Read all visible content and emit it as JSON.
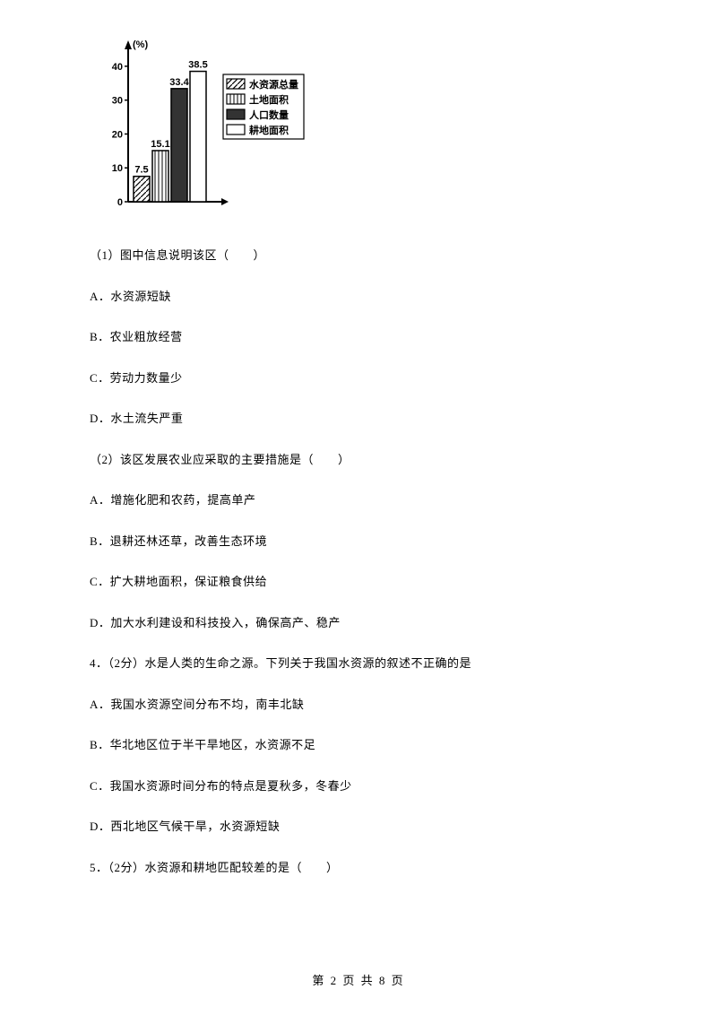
{
  "chart": {
    "y_label": "(%)",
    "y_ticks": [
      0,
      10,
      20,
      30,
      40
    ],
    "bars": [
      {
        "value": 7.5,
        "label": "7.5",
        "pattern": "hatch",
        "legend": "水资源总量"
      },
      {
        "value": 15.1,
        "label": "15.1",
        "pattern": "vertical",
        "legend": "土地面积"
      },
      {
        "value": 33.4,
        "label": "33.4",
        "pattern": "solid",
        "legend": "人口数量"
      },
      {
        "value": 38.5,
        "label": "38.5",
        "pattern": "white",
        "legend": "耕地面积"
      }
    ],
    "axis_color": "#000000",
    "ymax": 45
  },
  "lines": [
    "（1）图中信息说明该区（　　）",
    "A．水资源短缺",
    "B．农业粗放经营",
    "C．劳动力数量少",
    "D．水土流失严重",
    "（2）该区发展农业应采取的主要措施是（　　）",
    "A．增施化肥和农药，提高单产",
    "B．退耕还林还草，改善生态环境",
    "C．扩大耕地面积，保证粮食供给",
    "D．加大水利建设和科技投入，确保高产、稳产",
    "4．（2分）水是人类的生命之源。下列关于我国水资源的叙述不正确的是",
    "A．我国水资源空间分布不均，南丰北缺",
    "B．华北地区位于半干旱地区，水资源不足",
    "C．我国水资源时间分布的特点是夏秋多，冬春少",
    "D．西北地区气候干旱，水资源短缺",
    "5．（2分）水资源和耕地匹配较差的是（　　）"
  ],
  "footer": {
    "prefix": "第",
    "current": "2",
    "mid": "页 共",
    "total": "8",
    "suffix": "页"
  }
}
